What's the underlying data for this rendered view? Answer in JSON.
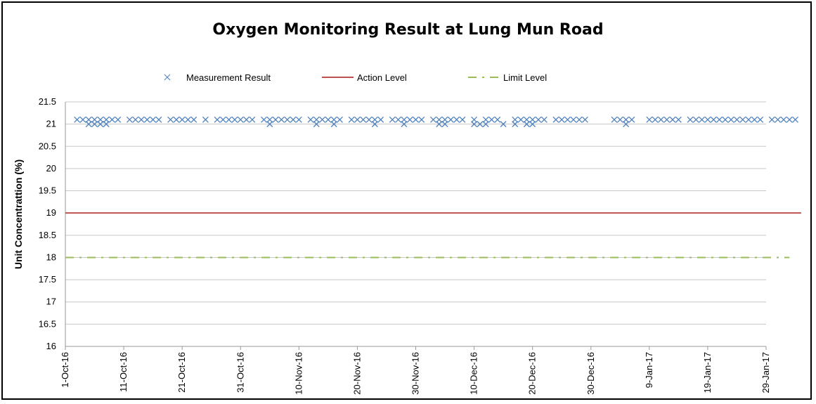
{
  "chart_data": {
    "type": "line",
    "title": "Oxygen Monitoring Result at Lung Mun Road",
    "xlabel": "",
    "ylabel": "Unit Concentrattion (%)",
    "ylim": [
      16,
      21.5
    ],
    "yticks": [
      "16",
      "16.5",
      "17",
      "17.5",
      "18",
      "18.5",
      "19",
      "19.5",
      "20",
      "20.5",
      "21",
      "21.5"
    ],
    "xlim": [
      "2016-10-01",
      "2017-01-29"
    ],
    "xticks": [
      "1-Oct-16",
      "11-Oct-16",
      "21-Oct-16",
      "31-Oct-16",
      "10-Nov-16",
      "20-Nov-16",
      "30-Nov-16",
      "10-Dec-16",
      "20-Dec-16",
      "30-Dec-16",
      "9-Jan-17",
      "19-Jan-17",
      "29-Jan-17"
    ],
    "grid": true,
    "legend": "top",
    "series": [
      {
        "name": "Measurement Result",
        "marker": "x",
        "color": "#4f81bd",
        "points": [
          [
            "2016-10-03",
            21.1
          ],
          [
            "2016-10-04",
            21.1
          ],
          [
            "2016-10-05",
            21.1
          ],
          [
            "2016-10-05",
            21.0
          ],
          [
            "2016-10-06",
            21.1
          ],
          [
            "2016-10-06",
            21.0
          ],
          [
            "2016-10-07",
            21.1
          ],
          [
            "2016-10-07",
            21.0
          ],
          [
            "2016-10-08",
            21.1
          ],
          [
            "2016-10-08",
            21.0
          ],
          [
            "2016-10-09",
            21.1
          ],
          [
            "2016-10-10",
            21.1
          ],
          [
            "2016-10-12",
            21.1
          ],
          [
            "2016-10-13",
            21.1
          ],
          [
            "2016-10-14",
            21.1
          ],
          [
            "2016-10-15",
            21.1
          ],
          [
            "2016-10-16",
            21.1
          ],
          [
            "2016-10-17",
            21.1
          ],
          [
            "2016-10-19",
            21.1
          ],
          [
            "2016-10-20",
            21.1
          ],
          [
            "2016-10-21",
            21.1
          ],
          [
            "2016-10-22",
            21.1
          ],
          [
            "2016-10-23",
            21.1
          ],
          [
            "2016-10-25",
            21.1
          ],
          [
            "2016-10-27",
            21.1
          ],
          [
            "2016-10-28",
            21.1
          ],
          [
            "2016-10-29",
            21.1
          ],
          [
            "2016-10-30",
            21.1
          ],
          [
            "2016-10-31",
            21.1
          ],
          [
            "2016-11-01",
            21.1
          ],
          [
            "2016-11-02",
            21.1
          ],
          [
            "2016-11-04",
            21.1
          ],
          [
            "2016-11-05",
            21.1
          ],
          [
            "2016-11-05",
            21.0
          ],
          [
            "2016-11-06",
            21.1
          ],
          [
            "2016-11-07",
            21.1
          ],
          [
            "2016-11-08",
            21.1
          ],
          [
            "2016-11-09",
            21.1
          ],
          [
            "2016-11-10",
            21.1
          ],
          [
            "2016-11-12",
            21.1
          ],
          [
            "2016-11-13",
            21.1
          ],
          [
            "2016-11-13",
            21.0
          ],
          [
            "2016-11-14",
            21.1
          ],
          [
            "2016-11-15",
            21.1
          ],
          [
            "2016-11-16",
            21.1
          ],
          [
            "2016-11-16",
            21.0
          ],
          [
            "2016-11-17",
            21.1
          ],
          [
            "2016-11-19",
            21.1
          ],
          [
            "2016-11-20",
            21.1
          ],
          [
            "2016-11-21",
            21.1
          ],
          [
            "2016-11-22",
            21.1
          ],
          [
            "2016-11-23",
            21.1
          ],
          [
            "2016-11-23",
            21.0
          ],
          [
            "2016-11-24",
            21.1
          ],
          [
            "2016-11-26",
            21.1
          ],
          [
            "2016-11-27",
            21.1
          ],
          [
            "2016-11-28",
            21.1
          ],
          [
            "2016-11-28",
            21.0
          ],
          [
            "2016-11-29",
            21.1
          ],
          [
            "2016-11-30",
            21.1
          ],
          [
            "2016-12-01",
            21.1
          ],
          [
            "2016-12-03",
            21.1
          ],
          [
            "2016-12-04",
            21.1
          ],
          [
            "2016-12-04",
            21.0
          ],
          [
            "2016-12-05",
            21.1
          ],
          [
            "2016-12-05",
            21.0
          ],
          [
            "2016-12-06",
            21.1
          ],
          [
            "2016-12-07",
            21.1
          ],
          [
            "2016-12-08",
            21.1
          ],
          [
            "2016-12-10",
            21.1
          ],
          [
            "2016-12-10",
            21.0
          ],
          [
            "2016-12-11",
            21.0
          ],
          [
            "2016-12-12",
            21.1
          ],
          [
            "2016-12-12",
            21.0
          ],
          [
            "2016-12-13",
            21.1
          ],
          [
            "2016-12-14",
            21.1
          ],
          [
            "2016-12-15",
            21.0
          ],
          [
            "2016-12-17",
            21.1
          ],
          [
            "2016-12-17",
            21.0
          ],
          [
            "2016-12-18",
            21.1
          ],
          [
            "2016-12-19",
            21.1
          ],
          [
            "2016-12-19",
            21.0
          ],
          [
            "2016-12-20",
            21.1
          ],
          [
            "2016-12-20",
            21.0
          ],
          [
            "2016-12-21",
            21.1
          ],
          [
            "2016-12-22",
            21.1
          ],
          [
            "2016-12-24",
            21.1
          ],
          [
            "2016-12-25",
            21.1
          ],
          [
            "2016-12-26",
            21.1
          ],
          [
            "2016-12-27",
            21.1
          ],
          [
            "2016-12-28",
            21.1
          ],
          [
            "2016-12-29",
            21.1
          ],
          [
            "2017-01-03",
            21.1
          ],
          [
            "2017-01-04",
            21.1
          ],
          [
            "2017-01-05",
            21.0
          ],
          [
            "2017-01-05",
            21.1
          ],
          [
            "2017-01-06",
            21.1
          ],
          [
            "2017-01-09",
            21.1
          ],
          [
            "2017-01-10",
            21.1
          ],
          [
            "2017-01-11",
            21.1
          ],
          [
            "2017-01-12",
            21.1
          ],
          [
            "2017-01-13",
            21.1
          ],
          [
            "2017-01-14",
            21.1
          ],
          [
            "2017-01-16",
            21.1
          ],
          [
            "2017-01-17",
            21.1
          ],
          [
            "2017-01-18",
            21.1
          ],
          [
            "2017-01-19",
            21.1
          ],
          [
            "2017-01-20",
            21.1
          ],
          [
            "2017-01-21",
            21.1
          ],
          [
            "2017-01-22",
            21.1
          ],
          [
            "2017-01-23",
            21.1
          ],
          [
            "2017-01-24",
            21.1
          ],
          [
            "2017-01-25",
            21.1
          ],
          [
            "2017-01-26",
            21.1
          ],
          [
            "2017-01-27",
            21.1
          ],
          [
            "2017-01-28",
            21.1
          ],
          [
            "2017-01-30",
            21.1
          ],
          [
            "2017-01-31",
            21.1
          ],
          [
            "2017-02-01",
            21.1
          ],
          [
            "2017-02-02",
            21.1
          ],
          [
            "2017-02-03",
            21.1
          ]
        ]
      },
      {
        "name": "Action Level",
        "color": "#c0504d",
        "value": 19,
        "x_range": [
          "2016-10-01",
          "2017-02-04"
        ],
        "style": "solid"
      },
      {
        "name": "Limit Level",
        "color": "#9bbb59",
        "value": 18,
        "x_range": [
          "2016-10-01",
          "2017-02-02"
        ],
        "style": "dash-dot"
      }
    ]
  }
}
